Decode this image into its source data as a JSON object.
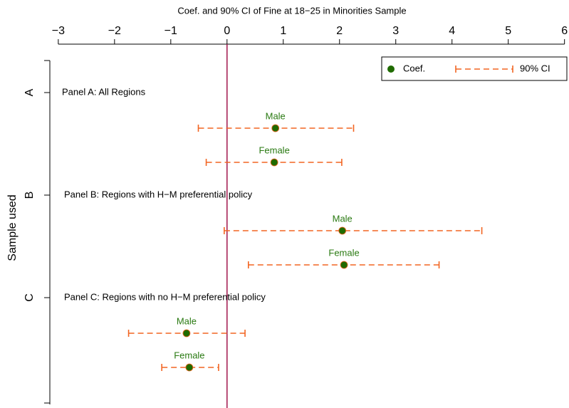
{
  "chart_data": {
    "type": "coefplot",
    "title": "Coef. and 90% CI of Fine at 18−25 in Minorities Sample",
    "ylabel": "Sample used",
    "xlim": [
      -3.15,
      6.08
    ],
    "xticks": [
      {
        "value": -3,
        "label": "−3"
      },
      {
        "value": -2,
        "label": "−2"
      },
      {
        "value": -1,
        "label": "−1"
      },
      0,
      1,
      2,
      3,
      4,
      5,
      6
    ],
    "refline": 0,
    "coef_name": "Coef.",
    "ci_name": "90% CI",
    "coef_color": "#1f6b00",
    "ci_color": "#f26522",
    "refline_color": "#a0144c",
    "label_color": "#2a7a12",
    "panels": [
      {
        "category": "A",
        "label": "Panel A: All Regions",
        "points": [
          {
            "name": "Male",
            "coef": 0.86,
            "ci": [
              -0.51,
              2.25
            ]
          },
          {
            "name": "Female",
            "coef": 0.84,
            "ci": [
              -0.37,
              2.04
            ]
          }
        ]
      },
      {
        "category": "B",
        "label": "Panel B: Regions with H−M preferential policy",
        "points": [
          {
            "name": "Male",
            "coef": 2.05,
            "ci": [
              -0.05,
              4.53
            ]
          },
          {
            "name": "Female",
            "coef": 2.08,
            "ci": [
              0.38,
              3.77
            ]
          }
        ]
      },
      {
        "category": "C",
        "label": "Panel C: Regions with no H−M preferential policy",
        "points": [
          {
            "name": "Male",
            "coef": -0.72,
            "ci": [
              -1.75,
              0.32
            ]
          },
          {
            "name": "Female",
            "coef": -0.67,
            "ci": [
              -1.16,
              -0.15
            ]
          }
        ]
      }
    ]
  }
}
